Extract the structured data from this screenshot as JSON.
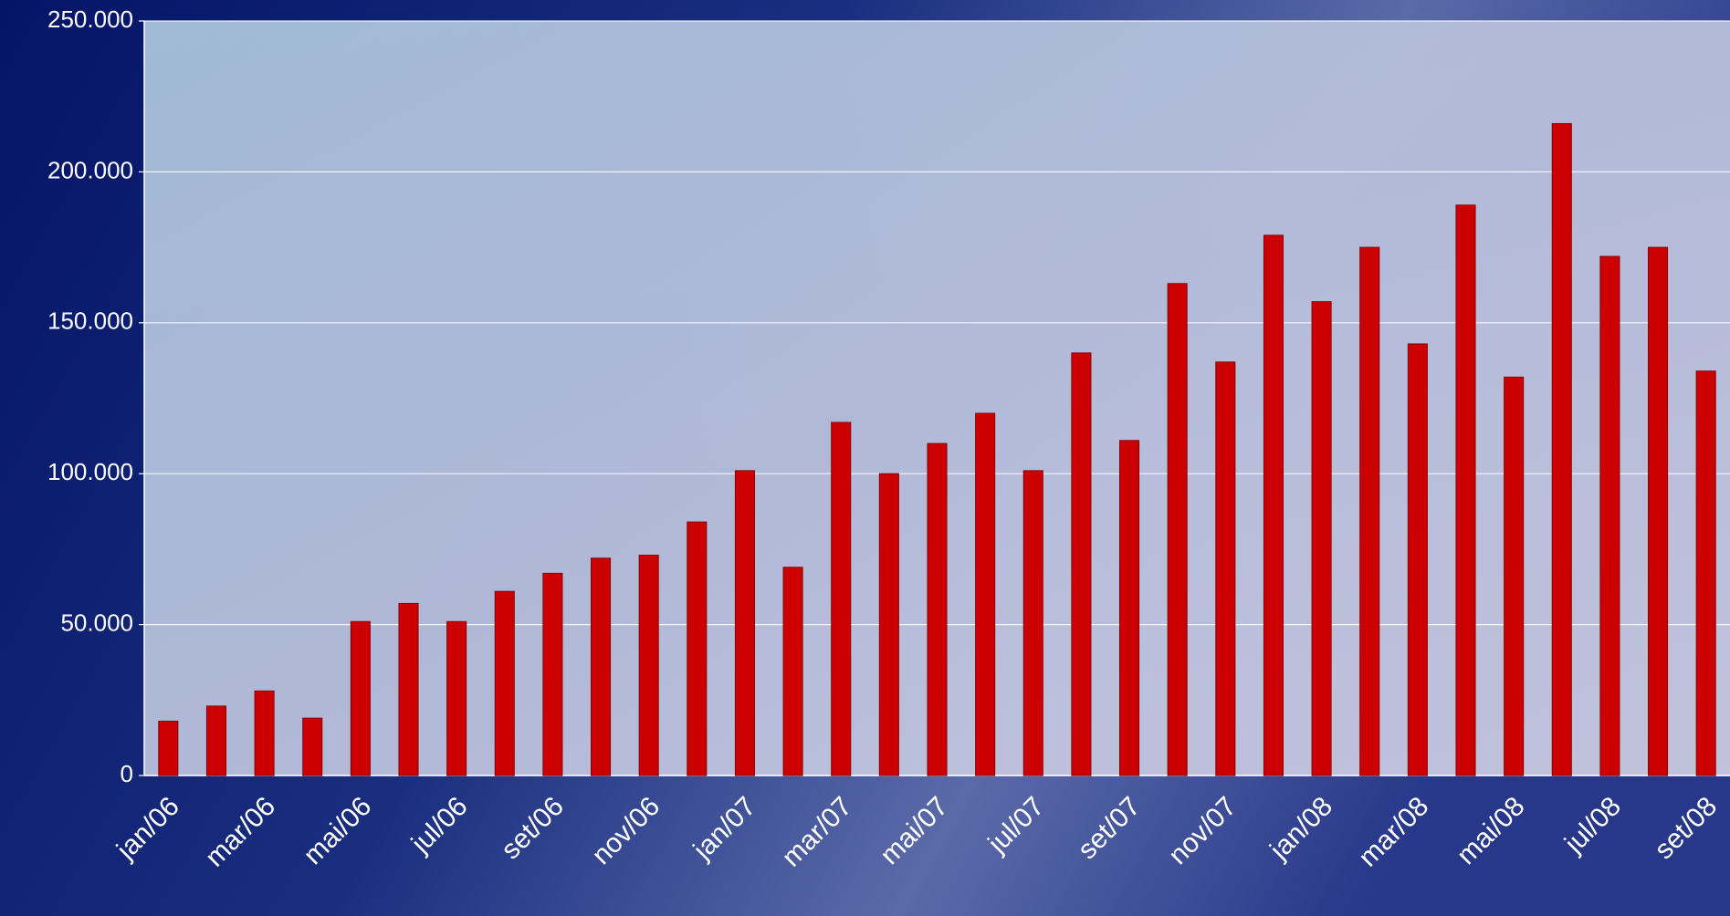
{
  "chart_data": {
    "type": "bar",
    "categories": [
      "jan/06",
      null,
      "mar/06",
      null,
      "mai/06",
      null,
      "jul/06",
      null,
      "set/06",
      null,
      "nov/06",
      null,
      "jan/07",
      null,
      "mar/07",
      null,
      "mai/07",
      null,
      "jul/07",
      null,
      "set/07",
      null,
      "nov/07",
      null,
      "jan/08",
      null,
      "mar/08",
      null,
      "mai/08",
      null,
      "jul/08",
      null,
      "set/08"
    ],
    "values": [
      18000,
      23000,
      28000,
      19000,
      51000,
      57000,
      51000,
      61000,
      67000,
      72000,
      73000,
      84000,
      101000,
      69000,
      117000,
      100000,
      110000,
      120000,
      101000,
      140000,
      111000,
      163000,
      137000,
      179000,
      157000,
      175000,
      143000,
      189000,
      132000,
      216000,
      172000,
      175000,
      134000
    ],
    "color": "#cc0000",
    "ylim": [
      0,
      250000
    ],
    "yticks": [
      0,
      {
        "value": 50000,
        "label": "50.000"
      },
      {
        "value": 100000,
        "label": "100.000"
      },
      {
        "value": 150000,
        "label": "150.000"
      },
      {
        "value": 200000,
        "label": "200.000"
      },
      {
        "value": 250000,
        "label": "250.000"
      }
    ],
    "grid": true
  }
}
